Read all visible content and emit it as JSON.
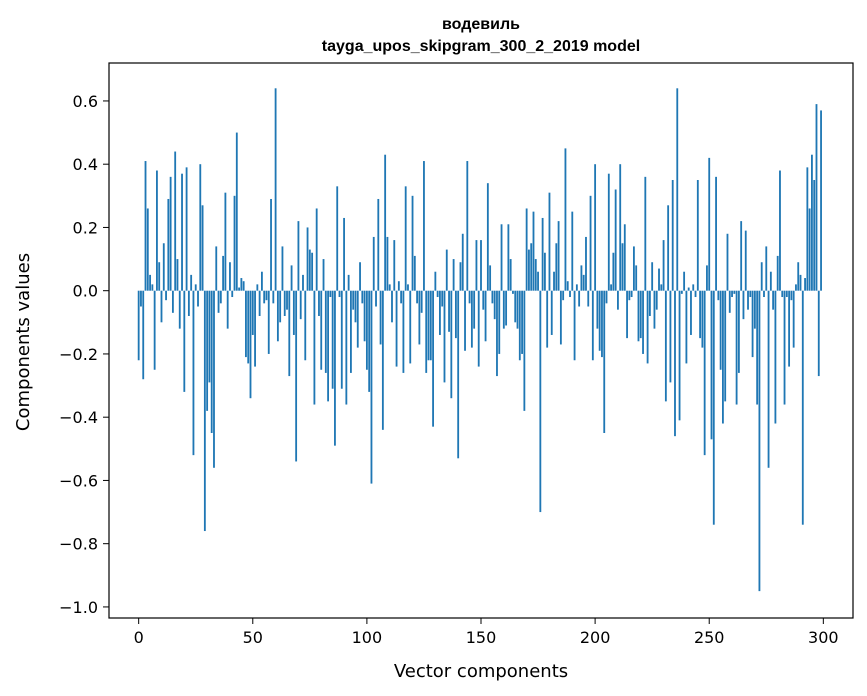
{
  "chart_data": {
    "type": "bar",
    "title": "водевиль",
    "subtitle": "tayga_upos_skipgram_300_2_2019 model",
    "xlabel": "Vector components",
    "ylabel": "Components values",
    "xlim": [
      -13,
      313
    ],
    "ylim": [
      -1.035,
      0.72
    ],
    "xticks": [
      0,
      50,
      100,
      150,
      200,
      250,
      300
    ],
    "yticks": [
      -1.0,
      -0.8,
      -0.6,
      -0.4,
      -0.2,
      0.0,
      0.2,
      0.4,
      0.6
    ],
    "ytick_labels": [
      "−1.0",
      "−0.8",
      "−0.6",
      "−0.4",
      "−0.2",
      "0.0",
      "0.2",
      "0.4",
      "0.6"
    ],
    "grid": false,
    "bar_color": "#1f77b4",
    "x": "0..299",
    "values": [
      -0.22,
      -0.05,
      -0.28,
      0.41,
      0.26,
      0.05,
      0.02,
      -0.25,
      0.38,
      0.09,
      -0.1,
      0.15,
      -0.03,
      0.29,
      0.36,
      -0.07,
      0.44,
      0.1,
      -0.12,
      0.37,
      -0.32,
      0.39,
      -0.08,
      0.05,
      -0.52,
      0.02,
      -0.05,
      0.4,
      0.27,
      -0.76,
      -0.38,
      -0.29,
      -0.45,
      -0.56,
      0.14,
      -0.07,
      -0.04,
      0.11,
      0.31,
      -0.12,
      0.09,
      -0.02,
      0.3,
      0.5,
      0.01,
      0.04,
      0.03,
      -0.21,
      -0.23,
      -0.34,
      -0.14,
      -0.24,
      0.02,
      -0.08,
      0.06,
      -0.04,
      -0.03,
      -0.2,
      0.29,
      -0.04,
      0.64,
      -0.16,
      -0.1,
      0.14,
      -0.08,
      -0.06,
      -0.27,
      0.08,
      -0.14,
      -0.54,
      0.22,
      -0.09,
      0.05,
      -0.22,
      0.2,
      0.13,
      0.12,
      -0.36,
      0.26,
      -0.08,
      -0.25,
      0.1,
      -0.26,
      -0.35,
      -0.02,
      -0.31,
      -0.49,
      0.33,
      -0.02,
      -0.31,
      0.23,
      -0.36,
      0.05,
      -0.26,
      -0.06,
      -0.1,
      -0.18,
      0.09,
      -0.04,
      -0.16,
      -0.25,
      -0.32,
      -0.61,
      0.17,
      -0.05,
      0.29,
      -0.17,
      -0.44,
      0.43,
      0.17,
      0.02,
      -0.1,
      0.16,
      -0.24,
      0.03,
      -0.04,
      -0.26,
      0.33,
      0.02,
      -0.23,
      0.3,
      0.11,
      -0.04,
      -0.17,
      -0.07,
      0.41,
      -0.26,
      -0.22,
      -0.22,
      -0.43,
      0.06,
      -0.02,
      -0.14,
      -0.05,
      -0.29,
      0.13,
      -0.13,
      -0.34,
      0.1,
      -0.15,
      -0.53,
      0.09,
      0.18,
      -0.19,
      0.41,
      -0.04,
      -0.18,
      -0.12,
      0.16,
      -0.24,
      0.16,
      -0.06,
      -0.16,
      0.34,
      0.08,
      -0.04,
      -0.09,
      -0.27,
      -0.2,
      0.21,
      -0.12,
      -0.11,
      0.21,
      0.1,
      -0.01,
      -0.1,
      -0.12,
      -0.22,
      -0.2,
      -0.38,
      0.26,
      0.13,
      0.15,
      0.25,
      0.1,
      0.06,
      -0.7,
      0.23,
      0.12,
      -0.18,
      0.31,
      -0.14,
      0.06,
      0.15,
      0.22,
      -0.17,
      -0.03,
      0.45,
      0.03,
      -0.02,
      0.25,
      -0.22,
      0.02,
      -0.05,
      0.08,
      0.05,
      0.17,
      -0.05,
      0.3,
      -0.22,
      0.4,
      -0.12,
      -0.19,
      -0.21,
      -0.45,
      -0.04,
      0.37,
      0.02,
      0.12,
      0.32,
      -0.06,
      0.4,
      0.15,
      0.21,
      -0.15,
      -0.03,
      -0.02,
      0.14,
      0.08,
      -0.16,
      -0.15,
      -0.2,
      0.36,
      -0.23,
      -0.08,
      0.09,
      -0.12,
      -0.06,
      0.07,
      0.02,
      0.16,
      -0.35,
      0.27,
      -0.29,
      0.35,
      -0.46,
      0.64,
      -0.41,
      -0.01,
      0.06,
      -0.23,
      0.01,
      -0.14,
      0.02,
      -0.02,
      0.35,
      -0.15,
      -0.18,
      -0.52,
      0.08,
      0.42,
      -0.47,
      -0.74,
      0.36,
      -0.03,
      -0.25,
      -0.42,
      -0.35,
      0.18,
      -0.07,
      -0.02,
      -0.01,
      -0.36,
      -0.26,
      0.22,
      -0.09,
      0.19,
      -0.06,
      -0.02,
      -0.21,
      -0.12,
      -0.36,
      -0.95,
      0.09,
      -0.02,
      0.14,
      -0.56,
      0.06,
      -0.06,
      -0.42,
      0.11,
      0.38,
      -0.02,
      -0.36,
      -0.02,
      -0.24,
      -0.03,
      -0.18,
      0.02,
      0.09,
      0.05,
      -0.74,
      0.04,
      0.39,
      0.26,
      0.43,
      0.35,
      0.59,
      -0.27,
      0.57
    ]
  }
}
